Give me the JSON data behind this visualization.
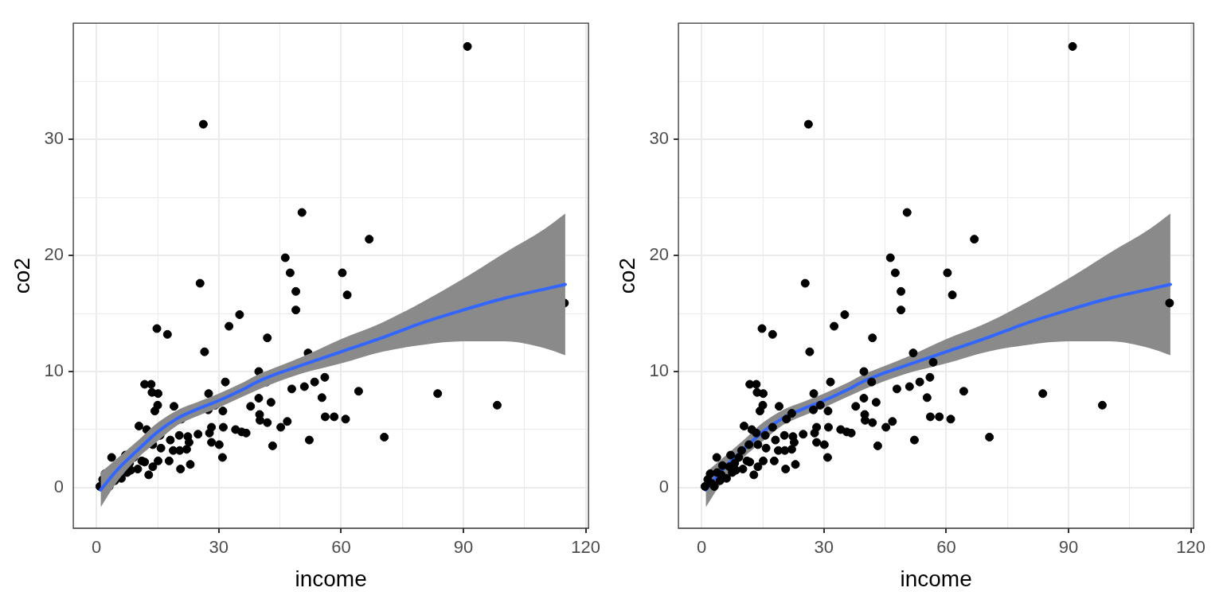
{
  "chart_data": [
    {
      "type": "scatter",
      "xlabel": "income",
      "ylabel": "co2",
      "xlim": [
        -5.7,
        120.7
      ],
      "ylim": [
        -3.5,
        40
      ],
      "xticks": [
        0,
        {
          "value": 15,
          "label": null
        },
        30,
        {
          "value": 45,
          "label": null
        },
        60,
        {
          "value": 75,
          "label": null
        },
        90,
        {
          "value": 105,
          "label": null
        },
        120
      ],
      "yticks": [
        0,
        {
          "value": 5,
          "label": null
        },
        10,
        {
          "value": 15,
          "label": null
        },
        20,
        {
          "value": 25,
          "label": null
        },
        30,
        {
          "value": 35,
          "label": null
        }
      ],
      "grid": true,
      "legend": false,
      "series": [
        {
          "type": "scatter",
          "color": "#000000",
          "marker": "circle",
          "x": [
            91,
            26.2,
            50.4,
            66.9,
            46.3,
            47.5,
            60.3,
            48.9,
            61.5,
            25.4,
            48.9,
            35.1,
            114.8,
            51.9,
            56,
            53.5,
            51,
            55.3,
            64.3,
            83.7,
            98.3,
            56.1,
            58.3,
            61.1,
            52.2,
            70.6,
            14.8,
            17.4,
            32.5,
            41.9,
            26.5,
            39.8,
            41.7,
            31.6,
            27.5,
            39.8,
            42.8,
            37.8,
            29.1,
            27.4,
            31,
            40,
            40.1,
            41.9,
            47.9,
            46.8,
            45.2,
            43.2,
            30.9,
            31.1,
            34.1,
            35.6,
            36.7,
            28.2,
            28.2,
            30.1,
            24.9,
            27.7,
            22.4,
            22.7,
            22.1,
            23,
            20.6,
            19,
            15,
            14.3,
            11.8,
            13.4,
            13.6,
            15.1,
            20.8,
            15.6,
            18.1,
            20.3,
            10.4,
            12.3,
            13.8,
            15.8,
            18.8,
            20.4,
            17.8,
            15.1,
            12.8,
            3.7,
            7.1,
            9.1,
            11.1,
            8.4,
            2.1,
            6.1,
            4.5,
            0.8,
            1.5,
            3.1,
            10.1,
            11.8,
            8.1,
            13.8,
            7.5
          ],
          "values": [
            38,
            31.3,
            23.7,
            21.4,
            19.8,
            18.5,
            18.5,
            16.9,
            16.6,
            17.6,
            15.3,
            14.9,
            15.9,
            11.6,
            9.5,
            9.1,
            8.7,
            7.75,
            8.3,
            8.1,
            7.1,
            6.1,
            6.1,
            5.9,
            4.1,
            4.35,
            13.7,
            13.2,
            13.9,
            12.9,
            11.7,
            10,
            9.1,
            9.1,
            8.1,
            7.7,
            7.35,
            7,
            7.1,
            6.7,
            6.6,
            6.3,
            5.8,
            5.6,
            8.5,
            5.7,
            5.2,
            3.6,
            2.6,
            5.2,
            5,
            4.8,
            4.7,
            5.2,
            3.9,
            3.7,
            4.6,
            4.7,
            4.4,
            3.9,
            3.3,
            2,
            1.6,
            7,
            7.1,
            6.6,
            8.9,
            8.9,
            8.2,
            8.1,
            5.9,
            4.5,
            4.1,
            4.5,
            5.3,
            5,
            3.7,
            3.4,
            3.2,
            3.2,
            2.3,
            2.3,
            1.1,
            2.6,
            2.8,
            2.6,
            2.3,
            1.5,
            1.2,
            0.8,
            0.6,
            0.1,
            0.7,
            0.1,
            1.6,
            2.2,
            2.1,
            1.8,
            1.3
          ]
        },
        {
          "type": "line",
          "color": "#3366ff",
          "x": [
            1,
            5,
            10,
            15,
            20,
            25,
            30,
            35,
            40,
            45,
            50,
            60,
            70,
            80,
            90,
            100,
            110,
            115
          ],
          "values": [
            -0.2,
            1.5,
            3.2,
            4.8,
            6,
            6.8,
            7.5,
            8.3,
            9.2,
            9.9,
            10.5,
            11.7,
            12.9,
            14.2,
            15.3,
            16.3,
            17.1,
            17.5
          ],
          "lower": [
            -1.7,
            0.5,
            2.5,
            4,
            5.4,
            6.2,
            6.9,
            7.7,
            8.5,
            9.2,
            9.8,
            10.7,
            11.7,
            12.3,
            12.6,
            12.6,
            12,
            11.4
          ],
          "upper": [
            1.3,
            2.5,
            4,
            5.6,
            6.7,
            7.4,
            8.1,
            8.9,
            9.8,
            10.5,
            11.2,
            12.8,
            14.2,
            16,
            18,
            20.2,
            22.3,
            23.6
          ]
        }
      ]
    },
    {
      "type": "scatter",
      "xlabel": "income",
      "ylabel": "co2",
      "xlim": [
        -5.7,
        120.7
      ],
      "ylim": [
        -3.5,
        40
      ],
      "xticks": [
        0,
        {
          "value": 15,
          "label": null
        },
        30,
        {
          "value": 45,
          "label": null
        },
        60,
        {
          "value": 75,
          "label": null
        },
        90,
        {
          "value": 105,
          "label": null
        },
        120
      ],
      "yticks": [
        0,
        {
          "value": 5,
          "label": null
        },
        10,
        {
          "value": 15,
          "label": null
        },
        20,
        {
          "value": 25,
          "label": null
        },
        30,
        {
          "value": 35,
          "label": null
        }
      ],
      "grid": true,
      "legend": false,
      "series": [
        {
          "type": "line",
          "color": "#3366ff",
          "x": [
            1,
            5,
            10,
            15,
            20,
            25,
            30,
            35,
            40,
            45,
            50,
            60,
            70,
            80,
            90,
            100,
            110,
            115
          ],
          "values": [
            -0.2,
            1.5,
            3.2,
            4.8,
            6,
            6.8,
            7.5,
            8.3,
            9.2,
            9.9,
            10.5,
            11.7,
            12.9,
            14.2,
            15.3,
            16.3,
            17.1,
            17.5
          ],
          "lower": [
            -1.7,
            0.5,
            2.5,
            4,
            5.4,
            6.2,
            6.9,
            7.7,
            8.5,
            9.2,
            9.8,
            10.7,
            11.7,
            12.3,
            12.6,
            12.6,
            12,
            11.4
          ],
          "upper": [
            1.3,
            2.5,
            4,
            5.6,
            6.7,
            7.4,
            8.1,
            8.9,
            9.8,
            10.5,
            11.2,
            12.8,
            14.2,
            16,
            18,
            20.2,
            22.3,
            23.6
          ]
        },
        {
          "type": "scatter",
          "color": "#000000",
          "marker": "circle",
          "x": [
            91,
            26.2,
            50.4,
            66.9,
            46.3,
            47.5,
            60.3,
            48.9,
            61.5,
            25.4,
            48.9,
            35.1,
            114.8,
            51.9,
            56.8,
            56,
            53.5,
            51,
            55.3,
            64.3,
            83.7,
            98.3,
            56.1,
            58.3,
            61.1,
            52.2,
            70.6,
            14.8,
            17.4,
            32.5,
            41.9,
            26.5,
            39.8,
            41.7,
            31.6,
            27.5,
            39.8,
            42.8,
            37.8,
            29.1,
            27.4,
            31,
            40,
            40.1,
            41.9,
            47.9,
            46.8,
            45.2,
            43.2,
            30.9,
            31.1,
            34.1,
            35.6,
            36.7,
            28.2,
            28.2,
            30.1,
            24.9,
            27.7,
            22.4,
            22.7,
            22.1,
            23,
            20.6,
            19,
            15,
            14.3,
            11.8,
            13.4,
            13.6,
            15.1,
            20.8,
            22.1,
            17.4,
            15.6,
            18.1,
            20.3,
            10.4,
            12.3,
            13.4,
            11.6,
            13.8,
            15.8,
            18.8,
            20.4,
            17.8,
            15.1,
            12.8,
            3.7,
            7.1,
            9.1,
            11.1,
            6.8,
            8.4,
            5.1,
            2.1,
            3.8,
            6.1,
            4.5,
            0.8,
            2.5,
            1.5,
            3.1,
            10.1,
            11.8,
            8.1,
            13.8,
            9.8,
            4.8,
            7.5
          ],
          "values": [
            38,
            31.3,
            23.7,
            21.4,
            19.8,
            18.5,
            18.5,
            16.9,
            16.6,
            17.6,
            15.3,
            14.9,
            15.9,
            11.6,
            10.8,
            9.5,
            9.1,
            8.7,
            7.75,
            8.3,
            8.1,
            7.1,
            6.1,
            6.1,
            5.9,
            4.1,
            4.35,
            13.7,
            13.2,
            13.9,
            12.9,
            11.7,
            10,
            9.1,
            9.1,
            8.1,
            7.7,
            7.35,
            7,
            7.1,
            6.7,
            6.6,
            6.3,
            5.8,
            5.6,
            8.5,
            5.7,
            5.2,
            3.6,
            2.6,
            5.2,
            5,
            4.8,
            4.7,
            5.2,
            3.9,
            3.7,
            4.6,
            4.7,
            4.4,
            3.9,
            3.3,
            2,
            1.6,
            7,
            7.1,
            6.6,
            8.9,
            8.9,
            8.2,
            8.1,
            5.9,
            6.4,
            5.2,
            4.5,
            4.1,
            4.5,
            5.3,
            5,
            4.7,
            3.7,
            3.7,
            3.4,
            3.2,
            3.2,
            2.3,
            2.3,
            1.1,
            2.6,
            2.8,
            2.6,
            2.3,
            1.8,
            1.5,
            1.9,
            1.2,
            1.3,
            0.8,
            0.6,
            0.1,
            0.35,
            0.7,
            0.1,
            1.6,
            2.2,
            2.1,
            1.8,
            3.2,
            1.1,
            1.3
          ]
        }
      ]
    }
  ]
}
